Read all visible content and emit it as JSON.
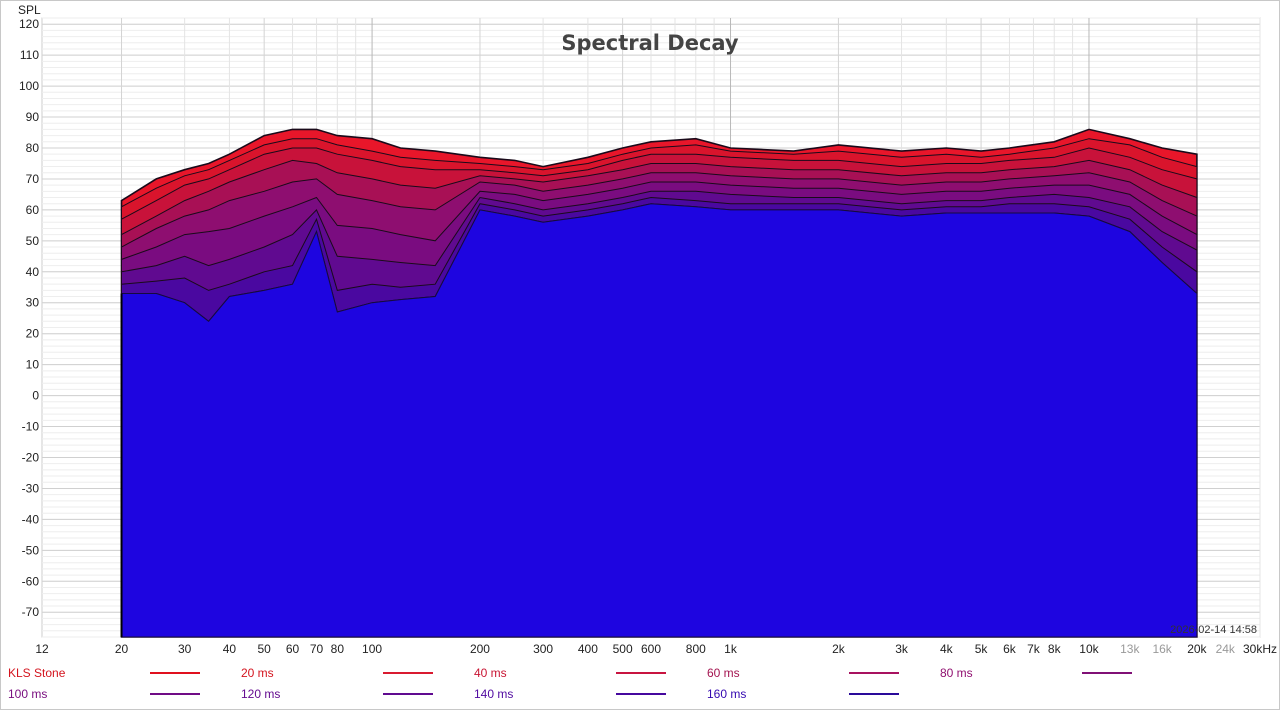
{
  "chart_data": {
    "type": "area",
    "title": "Spectral Decay",
    "ylabel": "SPL",
    "xlabel": "",
    "x_scale": "log",
    "xlim": [
      12,
      30000
    ],
    "ylim": [
      -78,
      122
    ],
    "grid": true,
    "legend_position": "bottom",
    "timestamp": "2026-02-14 14:58",
    "y_ticks": [
      "120",
      "110",
      "100",
      "90",
      "80",
      "70",
      "60",
      "50",
      "40",
      "30",
      "20",
      "10",
      "0",
      "-10",
      "-20",
      "-30",
      "-40",
      "-50",
      "-60",
      "-70"
    ],
    "x_ticks": [
      {
        "v": 12,
        "label": "12",
        "grey": false
      },
      {
        "v": 20,
        "label": "20",
        "grey": false
      },
      {
        "v": 30,
        "label": "30",
        "grey": false
      },
      {
        "v": 40,
        "label": "40",
        "grey": false
      },
      {
        "v": 50,
        "label": "50",
        "grey": false
      },
      {
        "v": 60,
        "label": "60",
        "grey": false
      },
      {
        "v": 70,
        "label": "70",
        "grey": false
      },
      {
        "v": 80,
        "label": "80",
        "grey": false
      },
      {
        "v": 100,
        "label": "100",
        "grey": false
      },
      {
        "v": 200,
        "label": "200",
        "grey": false
      },
      {
        "v": 300,
        "label": "300",
        "grey": false
      },
      {
        "v": 400,
        "label": "400",
        "grey": false
      },
      {
        "v": 500,
        "label": "500",
        "grey": false
      },
      {
        "v": 600,
        "label": "600",
        "grey": false
      },
      {
        "v": 800,
        "label": "800",
        "grey": false
      },
      {
        "v": 1000,
        "label": "1k",
        "grey": false
      },
      {
        "v": 2000,
        "label": "2k",
        "grey": false
      },
      {
        "v": 3000,
        "label": "3k",
        "grey": false
      },
      {
        "v": 4000,
        "label": "4k",
        "grey": false
      },
      {
        "v": 5000,
        "label": "5k",
        "grey": false
      },
      {
        "v": 6000,
        "label": "6k",
        "grey": false
      },
      {
        "v": 7000,
        "label": "7k",
        "grey": false
      },
      {
        "v": 8000,
        "label": "8k",
        "grey": false
      },
      {
        "v": 10000,
        "label": "10k",
        "grey": false
      },
      {
        "v": 13000,
        "label": "13k",
        "grey": true
      },
      {
        "v": 16000,
        "label": "16k",
        "grey": true
      },
      {
        "v": 20000,
        "label": "20k",
        "grey": false
      },
      {
        "v": 24000,
        "label": "24k",
        "grey": true
      },
      {
        "v": 30000,
        "label": "30kHz",
        "grey": false
      }
    ],
    "x": [
      20,
      25,
      30,
      35,
      40,
      50,
      60,
      70,
      80,
      100,
      120,
      150,
      200,
      250,
      300,
      400,
      500,
      600,
      800,
      1000,
      1500,
      2000,
      3000,
      4000,
      5000,
      6000,
      8000,
      10000,
      13000,
      16000,
      20000
    ],
    "series": [
      {
        "name": "KLS Stone",
        "color": "#e8162a",
        "values": [
          63,
          70,
          73,
          75,
          78,
          84,
          86,
          86,
          84,
          83,
          80,
          79,
          77,
          76,
          74,
          77,
          80,
          82,
          83,
          80,
          79,
          81,
          79,
          80,
          79,
          80,
          82,
          86,
          83,
          80,
          78
        ]
      },
      {
        "name": "20 ms",
        "color": "#d9142c",
        "values": [
          61,
          67,
          71,
          73,
          76,
          81,
          83,
          83,
          81,
          79,
          77,
          76,
          75,
          74,
          73,
          75,
          78,
          80,
          81,
          79,
          78,
          79,
          77,
          78,
          77,
          78,
          80,
          83,
          81,
          77,
          74
        ]
      },
      {
        "name": "40 ms",
        "color": "#c8123a",
        "values": [
          57,
          63,
          68,
          70,
          73,
          78,
          80,
          80,
          78,
          76,
          74,
          73,
          73,
          72,
          71,
          73,
          76,
          78,
          78,
          77,
          76,
          76,
          74,
          75,
          75,
          76,
          77,
          80,
          77,
          73,
          70
        ]
      },
      {
        "name": "60 ms",
        "color": "#a81055",
        "values": [
          52,
          58,
          63,
          66,
          69,
          73,
          76,
          75,
          72,
          70,
          68,
          67,
          71,
          70,
          69,
          71,
          73,
          75,
          75,
          74,
          73,
          73,
          71,
          72,
          72,
          73,
          74,
          76,
          73,
          68,
          64
        ]
      },
      {
        "name": "80 ms",
        "color": "#8e0e70",
        "values": [
          48,
          54,
          58,
          60,
          63,
          66,
          69,
          70,
          65,
          63,
          61,
          60,
          69,
          68,
          66,
          68,
          70,
          72,
          72,
          71,
          70,
          70,
          68,
          69,
          69,
          70,
          71,
          72,
          69,
          63,
          58
        ]
      },
      {
        "name": "100 ms",
        "color": "#7a0c80",
        "values": [
          44,
          48,
          52,
          53,
          54,
          58,
          61,
          64,
          55,
          54,
          52,
          50,
          66,
          65,
          63,
          65,
          67,
          69,
          69,
          68,
          67,
          67,
          65,
          66,
          66,
          67,
          68,
          68,
          65,
          58,
          52
        ]
      },
      {
        "name": "120 ms",
        "color": "#600a90",
        "values": [
          40,
          42,
          45,
          42,
          44,
          48,
          52,
          60,
          45,
          44,
          43,
          42,
          64,
          62,
          60,
          62,
          64,
          66,
          66,
          65,
          64,
          64,
          62,
          63,
          63,
          64,
          65,
          64,
          61,
          53,
          47
        ]
      },
      {
        "name": "140 ms",
        "color": "#4a08a0",
        "values": [
          36,
          37,
          38,
          34,
          36,
          40,
          42,
          57,
          34,
          36,
          35,
          36,
          62,
          60,
          58,
          60,
          62,
          64,
          63,
          62,
          62,
          62,
          60,
          61,
          61,
          62,
          62,
          61,
          57,
          48,
          40
        ]
      },
      {
        "name": "160 ms",
        "color": "#2006b8",
        "values": [
          33,
          33,
          30,
          24,
          32,
          34,
          36,
          53,
          27,
          30,
          31,
          32,
          60,
          58,
          56,
          58,
          60,
          62,
          61,
          60,
          60,
          60,
          58,
          59,
          59,
          59,
          59,
          58,
          53,
          43,
          33
        ]
      }
    ],
    "fill_color": "#1e05e0"
  },
  "legend": [
    {
      "label": "KLS Stone",
      "color": "#d4141e",
      "line": "#e0101e"
    },
    {
      "label": "20 ms",
      "color": "#d4141e",
      "line": "#d91a30"
    },
    {
      "label": "40 ms",
      "color": "#c81432",
      "line": "#c81440"
    },
    {
      "label": "60 ms",
      "color": "#a41450",
      "line": "#a81260"
    },
    {
      "label": "80 ms",
      "color": "#901070",
      "line": "#801076"
    },
    {
      "label": "100 ms",
      "color": "#7a1080",
      "line": "#700c86"
    },
    {
      "label": "120 ms",
      "color": "#640c90",
      "line": "#600a90"
    },
    {
      "label": "140 ms",
      "color": "#500aa0",
      "line": "#46089e"
    },
    {
      "label": "160 ms",
      "color": "#3408b0",
      "line": "#2a0a9a"
    }
  ]
}
